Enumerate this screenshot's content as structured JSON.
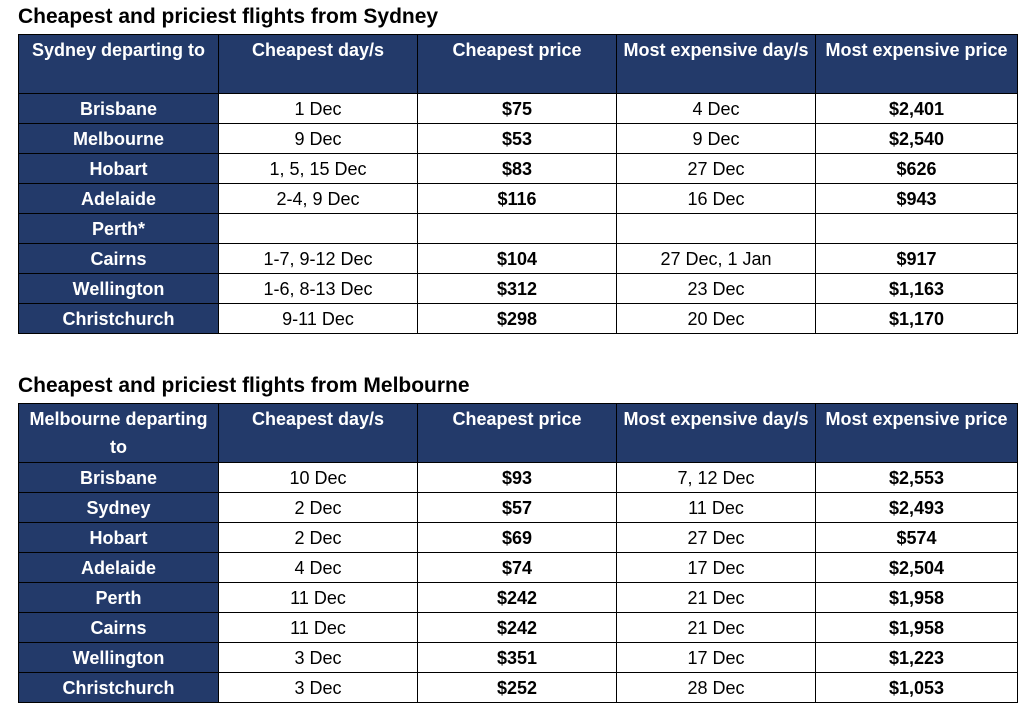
{
  "sydney": {
    "title": "Cheapest and priciest flights from Sydney",
    "headers": [
      "Sydney departing to",
      "Cheapest day/s",
      "Cheapest price",
      "Most expensive day/s",
      "Most expensive price"
    ],
    "rows": [
      [
        "Brisbane",
        "1 Dec",
        "$75",
        "4 Dec",
        "$2,401"
      ],
      [
        "Melbourne",
        "9 Dec",
        "$53",
        "9 Dec",
        "$2,540"
      ],
      [
        "Hobart",
        "1, 5, 15 Dec",
        "$83",
        "27 Dec",
        "$626"
      ],
      [
        "Adelaide",
        "2-4, 9 Dec",
        "$116",
        "16 Dec",
        "$943"
      ],
      [
        "Perth*",
        "",
        "",
        "",
        ""
      ],
      [
        "Cairns",
        "1-7, 9-12 Dec",
        "$104",
        "27 Dec, 1 Jan",
        "$917"
      ],
      [
        "Wellington",
        "1-6, 8-13 Dec",
        "$312",
        "23 Dec",
        "$1,163"
      ],
      [
        "Christchurch",
        "9-11 Dec",
        "$298",
        "20 Dec",
        "$1,170"
      ]
    ]
  },
  "melbourne": {
    "title": "Cheapest and priciest flights from Melbourne",
    "headers": [
      "Melbourne departing to",
      "Cheapest day/s",
      "Cheapest price",
      "Most expensive day/s",
      "Most expensive price"
    ],
    "rows": [
      [
        "Brisbane",
        "10 Dec",
        "$93",
        "7, 12 Dec",
        "$2,553"
      ],
      [
        "Sydney",
        "2 Dec",
        "$57",
        "11 Dec",
        "$2,493"
      ],
      [
        "Hobart",
        "2 Dec",
        "$69",
        "27 Dec",
        "$574"
      ],
      [
        "Adelaide",
        "4 Dec",
        "$74",
        "17 Dec",
        "$2,504"
      ],
      [
        "Perth",
        "11 Dec",
        "$242",
        "21 Dec",
        "$1,958"
      ],
      [
        "Cairns",
        "11 Dec",
        "$242",
        "21 Dec",
        "$1,958"
      ],
      [
        "Wellington",
        "3 Dec",
        "$351",
        "17 Dec",
        "$1,223"
      ],
      [
        "Christchurch",
        "3 Dec",
        "$252",
        "28 Dec",
        "$1,053"
      ]
    ]
  }
}
